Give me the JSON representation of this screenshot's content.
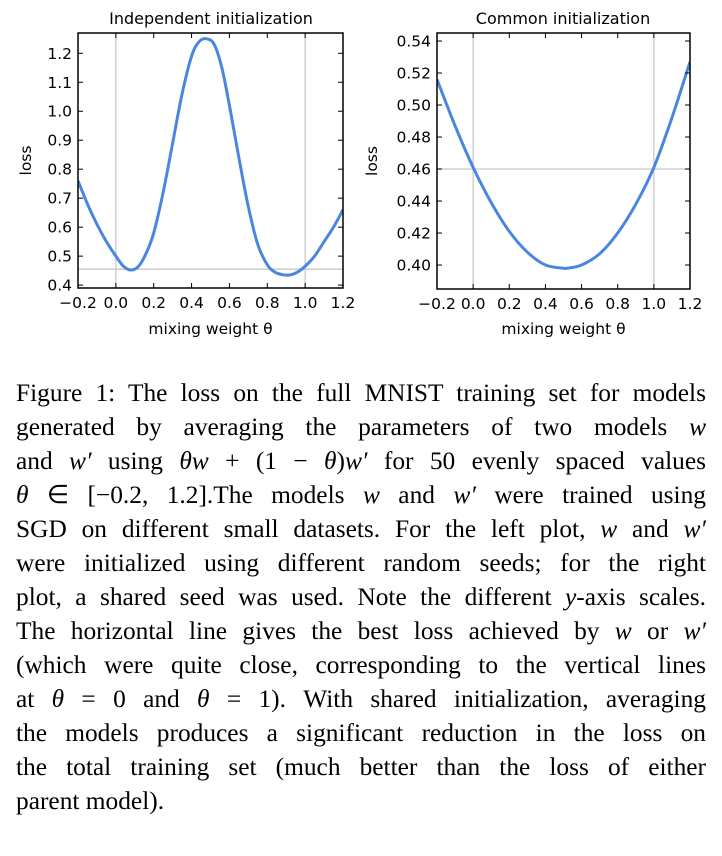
{
  "chart_data": [
    {
      "type": "line",
      "title": "Independent initialization",
      "xlabel": "mixing weight θ",
      "ylabel": "loss",
      "xlim": [
        -0.2,
        1.2
      ],
      "ylim": [
        0.39,
        1.27
      ],
      "xticks": [
        -0.2,
        0.0,
        0.2,
        0.4,
        0.6,
        0.8,
        1.0,
        1.2
      ],
      "xtick_labels": [
        "−0.2",
        "0.0",
        "0.2",
        "0.4",
        "0.6",
        "0.8",
        "1.0",
        "1.2"
      ],
      "yticks": [
        0.4,
        0.5,
        0.6,
        0.7,
        0.8,
        0.9,
        1.0,
        1.1,
        1.2
      ],
      "ytick_labels": [
        "0.4",
        "0.5",
        "0.6",
        "0.7",
        "0.8",
        "0.9",
        "1.0",
        "1.1",
        "1.2"
      ],
      "grid": false,
      "reference_lines": {
        "horizontal": [
          0.455
        ],
        "vertical": [
          0.0,
          1.0
        ]
      },
      "line_color": "#4a86e0",
      "series": [
        {
          "name": "loss",
          "x": [
            -0.2,
            -0.15,
            -0.1,
            -0.05,
            0.0,
            0.04,
            0.08,
            0.12,
            0.16,
            0.2,
            0.25,
            0.3,
            0.35,
            0.4,
            0.44,
            0.48,
            0.52,
            0.56,
            0.6,
            0.65,
            0.7,
            0.75,
            0.8,
            0.84,
            0.88,
            0.92,
            0.96,
            1.0,
            1.05,
            1.1,
            1.15,
            1.2
          ],
          "y": [
            0.76,
            0.68,
            0.61,
            0.55,
            0.5,
            0.465,
            0.452,
            0.465,
            0.51,
            0.58,
            0.72,
            0.89,
            1.06,
            1.19,
            1.24,
            1.25,
            1.23,
            1.15,
            1.02,
            0.84,
            0.67,
            0.54,
            0.47,
            0.445,
            0.436,
            0.435,
            0.445,
            0.465,
            0.5,
            0.55,
            0.6,
            0.66
          ]
        }
      ]
    },
    {
      "type": "line",
      "title": "Common initialization",
      "xlabel": "mixing weight θ",
      "ylabel": "loss",
      "xlim": [
        -0.2,
        1.2
      ],
      "ylim": [
        0.385,
        0.545
      ],
      "xticks": [
        -0.2,
        0.0,
        0.2,
        0.4,
        0.6,
        0.8,
        1.0,
        1.2
      ],
      "xtick_labels": [
        "−0.2",
        "0.0",
        "0.2",
        "0.4",
        "0.6",
        "0.8",
        "1.0",
        "1.2"
      ],
      "yticks": [
        0.4,
        0.42,
        0.44,
        0.46,
        0.48,
        0.5,
        0.52,
        0.54
      ],
      "ytick_labels": [
        "0.40",
        "0.42",
        "0.44",
        "0.46",
        "0.48",
        "0.50",
        "0.52",
        "0.54"
      ],
      "grid": false,
      "reference_lines": {
        "horizontal": [
          0.46
        ],
        "vertical": [
          0.0,
          1.0
        ]
      },
      "line_color": "#4a86e0",
      "series": [
        {
          "name": "loss",
          "x": [
            -0.2,
            -0.1,
            0.0,
            0.1,
            0.2,
            0.3,
            0.4,
            0.5,
            0.52,
            0.6,
            0.7,
            0.8,
            0.9,
            1.0,
            1.1,
            1.2
          ],
          "y": [
            0.516,
            0.487,
            0.461,
            0.439,
            0.421,
            0.408,
            0.4,
            0.398,
            0.398,
            0.4,
            0.407,
            0.42,
            0.438,
            0.461,
            0.492,
            0.527
          ]
        }
      ]
    }
  ],
  "caption": {
    "lines": [
      "Figure 1: The loss on the full MNIST training set for models",
      "generated by averaging the parameters of two models <i>w</i>",
      "and <i>w′</i> using <i>θw</i> + (1 − <i>θ</i>)<i>w′</i> for 50 evenly spaced values",
      "<i>θ</i> ∈ [−0.2, 1.2].The models <i>w</i> and <i>w′</i> were trained using",
      "SGD on different small datasets. For the left plot, <i>w</i> and <i>w′</i>",
      "were initialized using different random seeds; for the right",
      "plot, a shared seed was used. Note the different <i>y</i>-axis scales.",
      "The horizontal line gives the best loss achieved by <i>w</i> or <i>w′</i>",
      "(which were quite close, corresponding to the vertical lines",
      "at <i>θ</i> = 0 and <i>θ</i> = 1). With shared initialization, averaging",
      "the models produces a significant reduction in the loss on",
      "the total training set (much better than the loss of either",
      "parent model)."
    ]
  }
}
